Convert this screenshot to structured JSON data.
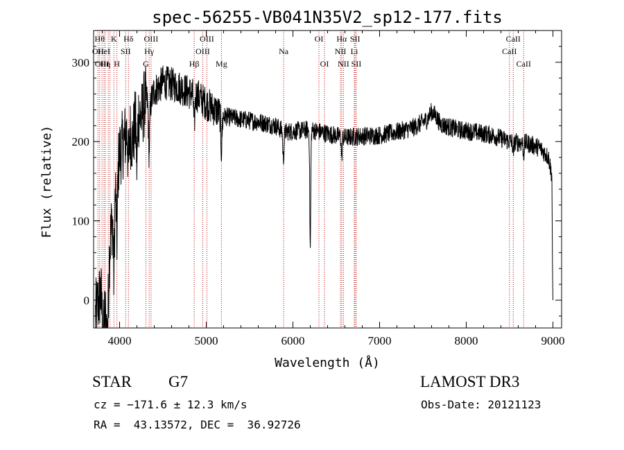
{
  "chart_data": {
    "type": "line",
    "title": "spec-56255-VB041N35V2_sp12-177.fits",
    "xlabel": "Wavelength (Å)",
    "ylabel": "Flux (relative)",
    "xlim": [
      3700,
      9100
    ],
    "ylim": [
      -35,
      340
    ],
    "xticks": [
      4000,
      5000,
      6000,
      7000,
      8000,
      9000
    ],
    "xtick_labels": [
      "4000",
      "5000",
      "6000",
      "7000",
      "8000",
      "9000"
    ],
    "yticks": [
      0,
      100,
      200,
      300
    ],
    "ytick_labels": [
      "0",
      "100",
      "200",
      "300"
    ],
    "continuum": [
      [
        3720,
        -20
      ],
      [
        3780,
        10
      ],
      [
        3840,
        -15
      ],
      [
        3880,
        60
      ],
      [
        3920,
        110
      ],
      [
        3960,
        150
      ],
      [
        4000,
        185
      ],
      [
        4050,
        200
      ],
      [
        4100,
        220
      ],
      [
        4150,
        200
      ],
      [
        4200,
        240
      ],
      [
        4250,
        230
      ],
      [
        4300,
        255
      ],
      [
        4350,
        245
      ],
      [
        4400,
        265
      ],
      [
        4450,
        268
      ],
      [
        4500,
        275
      ],
      [
        4600,
        272
      ],
      [
        4700,
        268
      ],
      [
        4800,
        262
      ],
      [
        4900,
        258
      ],
      [
        5000,
        248
      ],
      [
        5100,
        240
      ],
      [
        5200,
        232
      ],
      [
        5400,
        228
      ],
      [
        5600,
        225
      ],
      [
        5800,
        220
      ],
      [
        5900,
        212
      ],
      [
        6000,
        213
      ],
      [
        6200,
        215
      ],
      [
        6400,
        210
      ],
      [
        6600,
        205
      ],
      [
        6800,
        207
      ],
      [
        7000,
        208
      ],
      [
        7200,
        212
      ],
      [
        7400,
        218
      ],
      [
        7550,
        228
      ],
      [
        7600,
        238
      ],
      [
        7650,
        232
      ],
      [
        7700,
        222
      ],
      [
        7900,
        215
      ],
      [
        8100,
        212
      ],
      [
        8300,
        208
      ],
      [
        8500,
        200
      ],
      [
        8700,
        198
      ],
      [
        8850,
        192
      ],
      [
        8950,
        180
      ],
      [
        8990,
        155
      ]
    ],
    "features": [
      {
        "at": 3810,
        "depth": 40,
        "width": 15
      },
      {
        "at": 3860,
        "depth": 60,
        "width": 15
      },
      {
        "at": 3934,
        "depth": 90,
        "width": 10
      },
      {
        "at": 3969,
        "depth": 80,
        "width": 10
      },
      {
        "at": 4102,
        "depth": 50,
        "width": 10
      },
      {
        "at": 4200,
        "depth": 70,
        "width": 10
      },
      {
        "at": 4340,
        "depth": 60,
        "width": 10
      },
      {
        "at": 4861,
        "depth": 40,
        "width": 10
      },
      {
        "at": 5175,
        "depth": 45,
        "width": 10
      },
      {
        "at": 5890,
        "depth": 35,
        "width": 10
      },
      {
        "at": 6200,
        "depth": 150,
        "width": 8
      },
      {
        "at": 6563,
        "depth": 25,
        "width": 8
      },
      {
        "at": 8542,
        "depth": 15,
        "width": 8
      },
      {
        "at": 8662,
        "depth": 15,
        "width": 8
      }
    ],
    "line_markers": [
      {
        "wl": 3750,
        "labels": [
          null,
          "OII",
          null
        ]
      },
      {
        "wl": 3770,
        "labels": [
          "Hθ",
          null,
          null
        ]
      },
      {
        "wl": 3797,
        "labels": [
          null,
          null,
          "OIII"
        ]
      },
      {
        "wl": 3820,
        "labels": [
          null,
          "HeI",
          null
        ]
      },
      {
        "wl": 3835,
        "labels": [
          null,
          null,
          "Hη"
        ]
      },
      {
        "wl": 3869,
        "labels": [
          null,
          null,
          null
        ]
      },
      {
        "wl": 3889,
        "labels": [
          null,
          null,
          null
        ]
      },
      {
        "wl": 3934,
        "labels": [
          "K",
          null,
          null
        ]
      },
      {
        "wl": 3969,
        "labels": [
          null,
          null,
          "H"
        ]
      },
      {
        "wl": 4070,
        "labels": [
          null,
          "SII",
          null
        ]
      },
      {
        "wl": 4102,
        "labels": [
          "Hδ",
          null,
          null
        ]
      },
      {
        "wl": 4304,
        "labels": [
          null,
          null,
          "G"
        ]
      },
      {
        "wl": 4341,
        "labels": [
          null,
          "Hγ",
          null
        ]
      },
      {
        "wl": 4363,
        "labels": [
          "OIII",
          null,
          null
        ]
      },
      {
        "wl": 4861,
        "labels": [
          null,
          null,
          "Hβ"
        ]
      },
      {
        "wl": 4959,
        "labels": [
          null,
          "OIII",
          null
        ]
      },
      {
        "wl": 5007,
        "labels": [
          "OIII",
          null,
          null
        ]
      },
      {
        "wl": 5175,
        "labels": [
          null,
          null,
          "Mg"
        ]
      },
      {
        "wl": 5893,
        "labels": [
          null,
          "Na",
          null
        ]
      },
      {
        "wl": 6300,
        "labels": [
          "OI",
          null,
          null
        ]
      },
      {
        "wl": 6364,
        "labels": [
          null,
          null,
          "OI"
        ]
      },
      {
        "wl": 6548,
        "labels": [
          null,
          "NII",
          null
        ]
      },
      {
        "wl": 6563,
        "labels": [
          "Hα",
          null,
          null
        ]
      },
      {
        "wl": 6583,
        "labels": [
          null,
          null,
          "NII"
        ]
      },
      {
        "wl": 6708,
        "labels": [
          null,
          "Li",
          null
        ]
      },
      {
        "wl": 6717,
        "labels": [
          "SII",
          null,
          null
        ]
      },
      {
        "wl": 6731,
        "labels": [
          null,
          null,
          "SII"
        ]
      },
      {
        "wl": 8498,
        "labels": [
          null,
          "CaII",
          null
        ]
      },
      {
        "wl": 8542,
        "labels": [
          "CaII",
          null,
          null
        ]
      },
      {
        "wl": 8662,
        "labels": [
          null,
          null,
          "CaII"
        ]
      }
    ],
    "line_color": "#000000",
    "marker_color": "#c00000"
  },
  "footer": {
    "class_label": "STAR",
    "subclass": "G7",
    "survey": "LAMOST DR3",
    "cz": "cz = −171.6 ± 12.3 km/s",
    "obs_date": "Obs-Date: 20121123",
    "coords": "RA =  43.13572, DEC =  36.92726"
  }
}
